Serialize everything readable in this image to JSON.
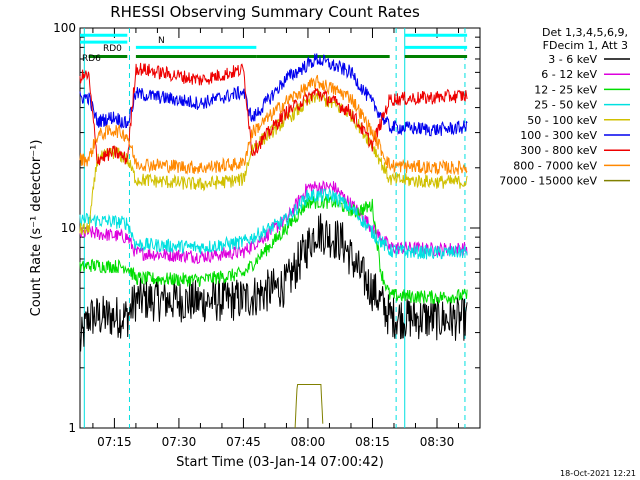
{
  "chart_data": {
    "type": "line",
    "title": "RHESSI Observing Summary Count Rates",
    "xlabel": "Start Time (03-Jan-14 07:00:42)",
    "ylabel": "Count Rate (s⁻¹ detector⁻¹)",
    "yscale": "log",
    "ylim": [
      1,
      100
    ],
    "xlim_minutes": [
      7.0,
      100.0
    ],
    "x_tick_labels": [
      "07:15",
      "07:30",
      "07:45",
      "08:00",
      "08:15",
      "08:30"
    ],
    "x_tick_minutes": [
      15,
      30,
      45,
      60,
      75,
      90
    ],
    "y_tick_labels": [
      "1",
      "10",
      "100"
    ],
    "legend_header": [
      "Det 1,3,4,5,6,9,",
      "FDecim 1, Att 3"
    ],
    "legend_position": "right",
    "date_stamp": "18-Oct-2021 12:21",
    "flag_labels": {
      "rd0": "RD0",
      "rd6": "RD6",
      "n": "N"
    },
    "series": [
      {
        "name": "3 - 6 keV",
        "color": "#000000",
        "pts": [
          [
            7,
            2.6
          ],
          [
            9,
            3.6
          ],
          [
            18,
            3.6
          ],
          [
            20,
            4.4
          ],
          [
            35,
            4.3
          ],
          [
            45,
            4.4
          ],
          [
            55,
            5.2
          ],
          [
            62,
            9.8
          ],
          [
            68,
            8.5
          ],
          [
            72,
            6.0
          ],
          [
            76,
            4.6
          ],
          [
            79,
            3.6
          ],
          [
            90,
            3.5
          ],
          [
            97,
            3.5
          ]
        ]
      },
      {
        "name": "6 - 12 keV",
        "color": "#dd00dd",
        "pts": [
          [
            7,
            9.3
          ],
          [
            9,
            9.5
          ],
          [
            18,
            9.0
          ],
          [
            20,
            7.5
          ],
          [
            35,
            7.2
          ],
          [
            45,
            7.6
          ],
          [
            55,
            11.0
          ],
          [
            60,
            16.0
          ],
          [
            66,
            16.0
          ],
          [
            71,
            12.5
          ],
          [
            75,
            10.0
          ],
          [
            79,
            8.0
          ],
          [
            90,
            7.8
          ],
          [
            97,
            7.9
          ]
        ]
      },
      {
        "name": "12 - 25 keV",
        "color": "#00dd00",
        "pts": [
          [
            7,
            6.3
          ],
          [
            9,
            6.5
          ],
          [
            18,
            6.4
          ],
          [
            20,
            5.6
          ],
          [
            35,
            5.5
          ],
          [
            45,
            5.9
          ],
          [
            55,
            10.0
          ],
          [
            60,
            13.5
          ],
          [
            66,
            13.5
          ],
          [
            71,
            12.0
          ],
          [
            75,
            13.0
          ],
          [
            77,
            6.0
          ],
          [
            79,
            4.6
          ],
          [
            90,
            4.5
          ],
          [
            97,
            4.6
          ]
        ]
      },
      {
        "name": "25 - 50 keV",
        "color": "#00e0e0",
        "pts": [
          [
            7,
            11.0
          ],
          [
            9,
            11.0
          ],
          [
            18,
            10.6
          ],
          [
            20,
            8.3
          ],
          [
            35,
            8.0
          ],
          [
            45,
            8.5
          ],
          [
            55,
            11.0
          ],
          [
            60,
            14.5
          ],
          [
            66,
            14.5
          ],
          [
            71,
            12.0
          ],
          [
            75,
            9.5
          ],
          [
            79,
            7.7
          ],
          [
            90,
            7.5
          ],
          [
            97,
            7.6
          ]
        ]
      },
      {
        "name": "50 - 100 keV",
        "color": "#d0c000",
        "pts": [
          [
            7,
            9.8
          ],
          [
            9,
            9.8
          ],
          [
            11,
            22.0
          ],
          [
            15,
            24.0
          ],
          [
            18,
            22.0
          ],
          [
            20,
            17.5
          ],
          [
            35,
            16.5
          ],
          [
            45,
            17.5
          ],
          [
            47,
            25.0
          ],
          [
            55,
            35.0
          ],
          [
            62,
            46.0
          ],
          [
            70,
            37.0
          ],
          [
            75,
            26.0
          ],
          [
            79,
            17.5
          ],
          [
            90,
            17.0
          ],
          [
            97,
            17.0
          ]
        ]
      },
      {
        "name": "100 - 300 keV",
        "color": "#0000ee",
        "pts": [
          [
            7,
            45.0
          ],
          [
            9,
            45.0
          ],
          [
            11,
            34.0
          ],
          [
            15,
            36.0
          ],
          [
            18,
            33.0
          ],
          [
            20,
            47.0
          ],
          [
            35,
            42.0
          ],
          [
            45,
            48.0
          ],
          [
            47,
            35.0
          ],
          [
            55,
            56.0
          ],
          [
            62,
            70.0
          ],
          [
            70,
            60.0
          ],
          [
            75,
            42.0
          ],
          [
            79,
            32.0
          ],
          [
            90,
            31.0
          ],
          [
            97,
            32.0
          ]
        ]
      },
      {
        "name": "300 - 800 keV",
        "color": "#ee0000",
        "pts": [
          [
            7,
            57.0
          ],
          [
            9,
            58.0
          ],
          [
            11,
            22.0
          ],
          [
            15,
            24.0
          ],
          [
            18,
            22.0
          ],
          [
            20,
            63.0
          ],
          [
            35,
            55.0
          ],
          [
            45,
            62.0
          ],
          [
            47,
            24.0
          ],
          [
            55,
            38.0
          ],
          [
            62,
            48.0
          ],
          [
            70,
            38.0
          ],
          [
            75,
            26.0
          ],
          [
            79,
            44.0
          ],
          [
            90,
            45.0
          ],
          [
            97,
            46.0
          ]
        ]
      },
      {
        "name": "800 - 7000 keV",
        "color": "#ff8800",
        "pts": [
          [
            7,
            22.0
          ],
          [
            9,
            22.0
          ],
          [
            11,
            29.0
          ],
          [
            15,
            31.0
          ],
          [
            18,
            29.0
          ],
          [
            20,
            21.0
          ],
          [
            35,
            20.0
          ],
          [
            45,
            21.0
          ],
          [
            47,
            30.0
          ],
          [
            55,
            43.0
          ],
          [
            62,
            54.0
          ],
          [
            70,
            45.0
          ],
          [
            75,
            30.0
          ],
          [
            79,
            20.5
          ],
          [
            90,
            20.0
          ],
          [
            97,
            20.0
          ]
        ]
      },
      {
        "name": "7000 - 15000 keV",
        "color": "#808000",
        "pts": [
          [
            57,
            1.0
          ],
          [
            57.5,
            1.65
          ],
          [
            63,
            1.65
          ],
          [
            63.5,
            1.0
          ]
        ]
      }
    ],
    "flags": [
      {
        "label": "RD0",
        "color": "#00ffff",
        "y_value": 85.0,
        "segments": [
          [
            7,
            18
          ]
        ]
      },
      {
        "label": "RD0",
        "color": "#00ffff",
        "y_value": 92.0,
        "segments": [
          [
            7,
            18
          ],
          [
            82.5,
            97
          ]
        ]
      },
      {
        "label": "N",
        "color": "#00ffff",
        "y_value": 80.0,
        "segments": [
          [
            20,
            48
          ],
          [
            82.5,
            97
          ]
        ]
      },
      {
        "label": "RD6",
        "color": "#008000",
        "y_value": 72.0,
        "segments": [
          [
            9,
            18
          ],
          [
            20,
            48
          ],
          [
            48,
            79
          ],
          [
            82.5,
            97
          ]
        ]
      }
    ],
    "cyan_dashed_lines_minutes": [
      18.5,
      80.5,
      96.5
    ],
    "cyan_solid_lines_minutes": [
      8.0,
      82.5
    ]
  }
}
